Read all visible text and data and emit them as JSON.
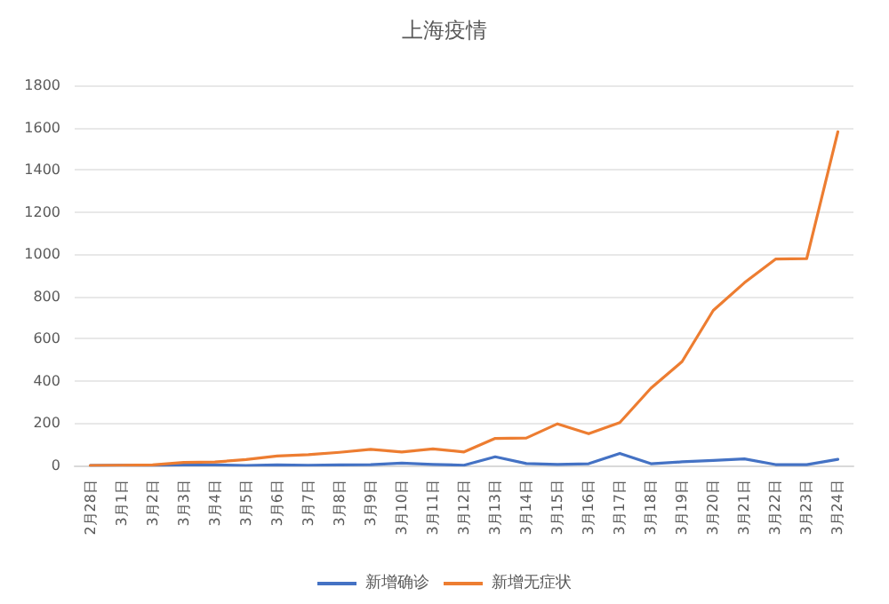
{
  "chart_data": {
    "type": "line",
    "title": "上海疫情",
    "categories": [
      "2月28日",
      "3月1日",
      "3月2日",
      "3月3日",
      "3月4日",
      "3月5日",
      "3月6日",
      "3月7日",
      "3月8日",
      "3月9日",
      "3月10日",
      "3月11日",
      "3月12日",
      "3月13日",
      "3月14日",
      "3月15日",
      "3月16日",
      "3月17日",
      "3月18日",
      "3月19日",
      "3月20日",
      "3月21日",
      "3月22日",
      "3月23日",
      "3月24日"
    ],
    "series": [
      {
        "name": "新增确诊",
        "color": "#4472c4",
        "values": [
          0,
          1,
          0,
          2,
          3,
          0,
          3,
          1,
          3,
          4,
          11,
          5,
          1,
          41,
          9,
          5,
          8,
          57,
          8,
          17,
          24,
          31,
          4,
          4,
          29
        ]
      },
      {
        "name": "新增无症状",
        "color": "#ed7d31",
        "values": [
          0,
          1,
          3,
          14,
          16,
          28,
          45,
          51,
          62,
          76,
          64,
          78,
          64,
          128,
          130,
          197,
          150,
          203,
          366,
          492,
          734,
          865,
          977,
          979,
          1580
        ]
      }
    ],
    "ylim": [
      0,
      1800
    ],
    "yticks": [
      0,
      200,
      400,
      600,
      800,
      1000,
      1200,
      1400,
      1600,
      1800
    ],
    "grid": "y",
    "legend": "bottom",
    "marker": "none",
    "line_style": "solid"
  }
}
